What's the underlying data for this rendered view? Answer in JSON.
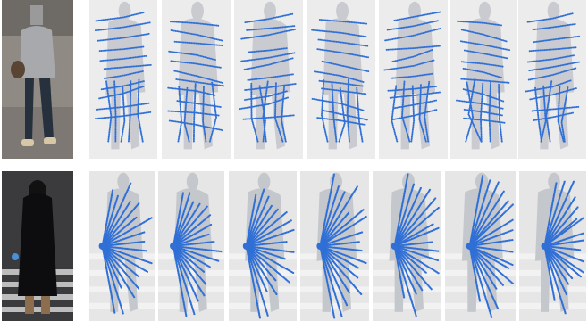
{
  "figure": {
    "rows": [
      {
        "id": "row-1",
        "photo_icon": "pedestrian-gray-hoodie-photo",
        "overlay_style": "horizontal-curves",
        "panel_count": 7,
        "colors": {
          "points": "#2f6fd6",
          "background": "#ececec",
          "silhouette": "#c9cbd0"
        }
      },
      {
        "id": "row-2",
        "photo_icon": "pedestrian-black-coat-photo",
        "overlay_style": "radial-fan",
        "panel_count": 7,
        "colors": {
          "points": "#2f6fd6",
          "background": "#e6e6e6",
          "silhouette": "#c4c7cc"
        }
      }
    ]
  }
}
